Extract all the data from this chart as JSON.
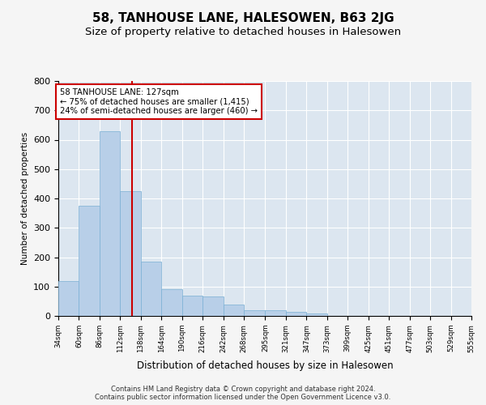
{
  "title": "58, TANHOUSE LANE, HALESOWEN, B63 2JG",
  "subtitle": "Size of property relative to detached houses in Halesowen",
  "xlabel": "Distribution of detached houses by size in Halesowen",
  "ylabel": "Number of detached properties",
  "bin_labels": [
    "34sqm",
    "60sqm",
    "86sqm",
    "112sqm",
    "138sqm",
    "164sqm",
    "190sqm",
    "216sqm",
    "242sqm",
    "268sqm",
    "295sqm",
    "321sqm",
    "347sqm",
    "373sqm",
    "399sqm",
    "425sqm",
    "451sqm",
    "477sqm",
    "503sqm",
    "529sqm",
    "555sqm"
  ],
  "bin_left_edges": [
    34,
    60,
    86,
    112,
    138,
    164,
    190,
    216,
    242,
    268,
    295,
    321,
    347,
    373,
    399,
    425,
    451,
    477,
    503,
    529
  ],
  "bin_width": 26,
  "bar_heights": [
    120,
    375,
    630,
    425,
    185,
    90,
    70,
    65,
    38,
    20,
    20,
    15,
    8,
    0,
    0,
    0,
    0,
    0,
    0,
    0
  ],
  "bar_color": "#b8cfe8",
  "bar_edge_color": "#7aafd4",
  "bg_color": "#dce6f0",
  "grid_color": "#ffffff",
  "property_x": 127,
  "annotation_line1": "58 TANHOUSE LANE: 127sqm",
  "annotation_line2": "← 75% of detached houses are smaller (1,415)",
  "annotation_line3": "24% of semi-detached houses are larger (460) →",
  "vline_color": "#cc0000",
  "annotation_box_edge": "#cc0000",
  "ylim": [
    0,
    800
  ],
  "xlim": [
    34,
    555
  ],
  "yticks": [
    0,
    100,
    200,
    300,
    400,
    500,
    600,
    700,
    800
  ],
  "footer_line1": "Contains HM Land Registry data © Crown copyright and database right 2024.",
  "footer_line2": "Contains public sector information licensed under the Open Government Licence v3.0.",
  "title_fontsize": 11,
  "subtitle_fontsize": 9.5,
  "fig_facecolor": "#f5f5f5"
}
